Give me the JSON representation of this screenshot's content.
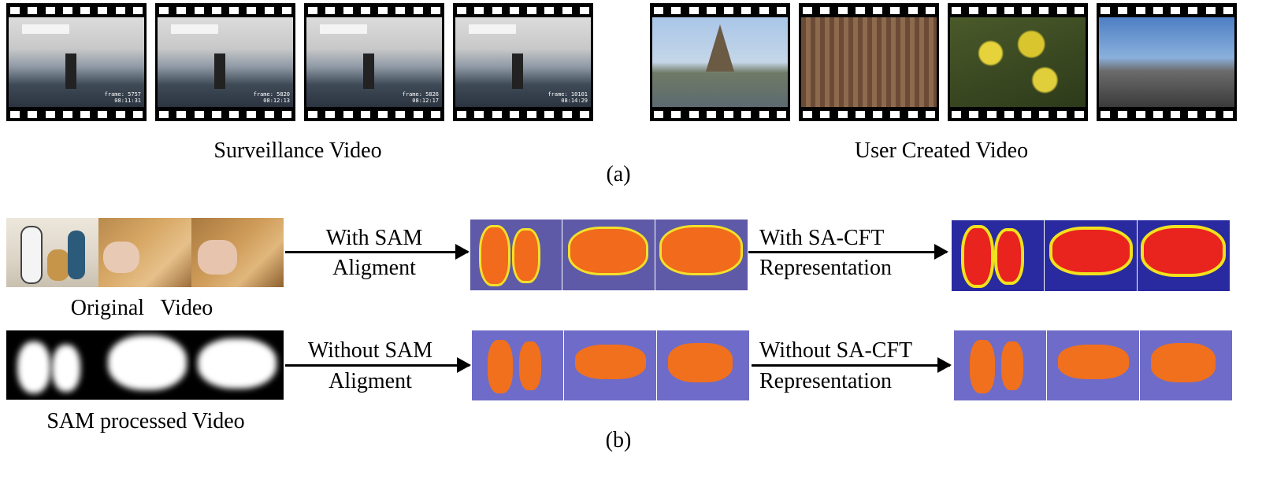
{
  "part_a": {
    "surveillance_label": "Surveillance Video",
    "user_created_label": "User Created Video",
    "caption": "(a)",
    "surveillance_frames": [
      {
        "frame": "frame: 5757",
        "time": "08:11:31"
      },
      {
        "frame": "frame: 5820",
        "time": "08:12:13"
      },
      {
        "frame": "frame: 5826",
        "time": "08:12:17"
      },
      {
        "frame": "frame: 10101",
        "time": "08:14:29"
      }
    ]
  },
  "part_b": {
    "original_label": "Original   Video",
    "sam_processed_label": "SAM processed Video",
    "with_sam": [
      "With SAM",
      "Aligment"
    ],
    "without_sam": [
      "Without SAM",
      "Aligment"
    ],
    "with_sacft": [
      "With SA-CFT",
      "Representation"
    ],
    "without_sacft": [
      "Without SA-CFT",
      "Representation"
    ],
    "caption": "(b)"
  },
  "colors": {
    "segment_fill": "#f26a1c",
    "segment_highlight": "#e9231e",
    "segment_edge": "#f3e02a",
    "background_blue": "#2a2aa0",
    "background_lavender": "#6e6cc8"
  }
}
